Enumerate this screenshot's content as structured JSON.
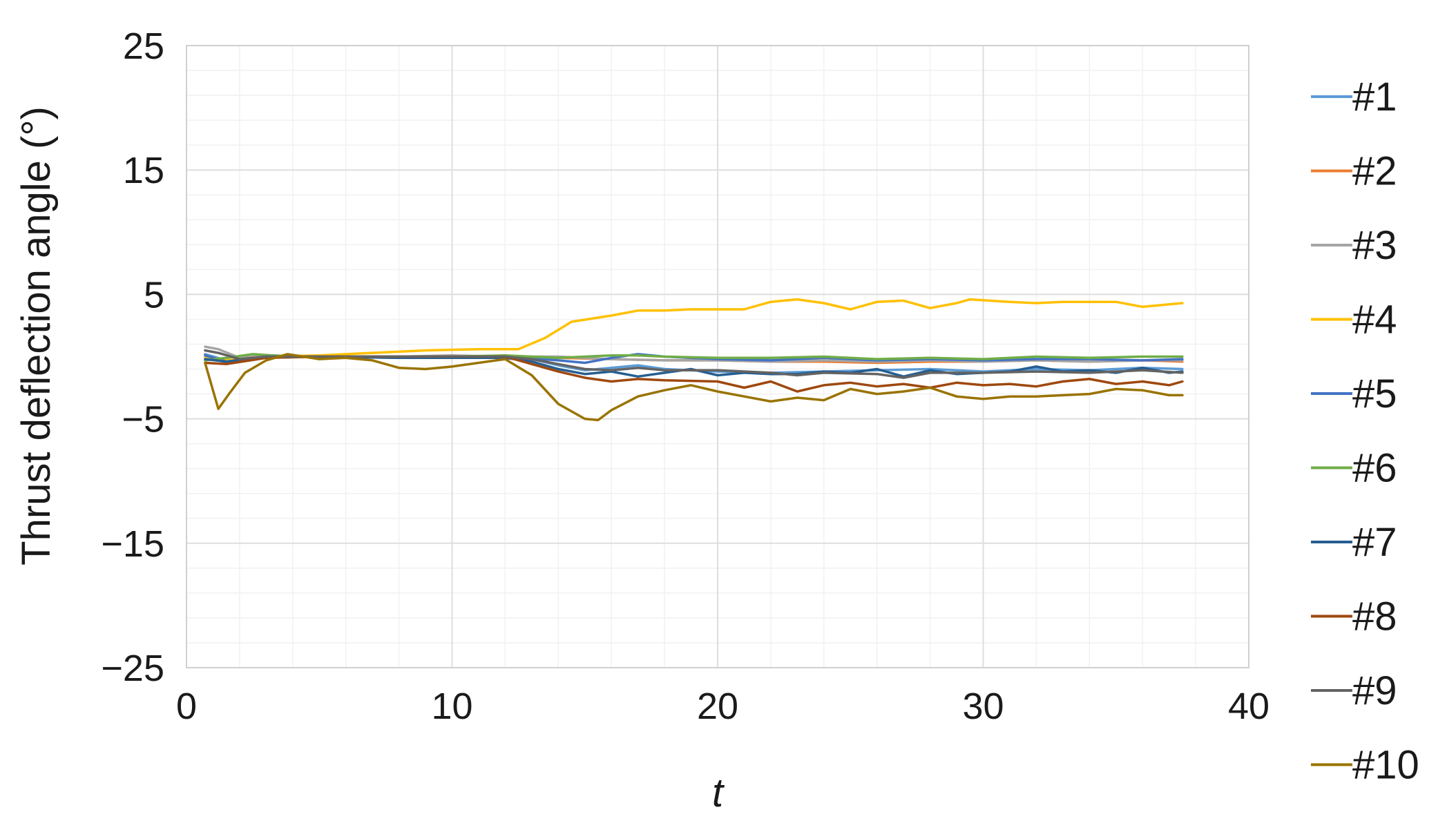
{
  "chart_data": {
    "type": "line",
    "title": "",
    "xlabel": "t",
    "ylabel": "Thrust deflection angle (°)",
    "xlim": [
      0,
      40
    ],
    "ylim": [
      -25,
      25
    ],
    "x_ticks": [
      0,
      10,
      20,
      30,
      40
    ],
    "x_tick_labels": [
      "0",
      "10",
      "20",
      "30",
      "40"
    ],
    "y_ticks": [
      -25,
      -15,
      -5,
      5,
      15,
      25
    ],
    "y_tick_labels": [
      "−25",
      "−15",
      "−5",
      "5",
      "15",
      "25"
    ],
    "grid": true,
    "legend_position": "right",
    "series": [
      {
        "name": "#1",
        "color": "#5b9bd5",
        "points": [
          [
            0.7,
            0.2
          ],
          [
            1.5,
            -0.3
          ],
          [
            3,
            0
          ],
          [
            5,
            0
          ],
          [
            8,
            -0.1
          ],
          [
            10,
            -0.1
          ],
          [
            12,
            0
          ],
          [
            13,
            -0.2
          ],
          [
            14,
            -0.7
          ],
          [
            15,
            -1.1
          ],
          [
            16,
            -0.9
          ],
          [
            17,
            -0.7
          ],
          [
            18,
            -1.0
          ],
          [
            20,
            -1.2
          ],
          [
            22,
            -1.3
          ],
          [
            24,
            -1.2
          ],
          [
            26,
            -1.1
          ],
          [
            28,
            -1.0
          ],
          [
            30,
            -1.2
          ],
          [
            32,
            -1.0
          ],
          [
            34,
            -1.1
          ],
          [
            36,
            -0.9
          ],
          [
            37.5,
            -1.0
          ]
        ]
      },
      {
        "name": "#2",
        "color": "#ed7d31",
        "points": [
          [
            0.7,
            0.1
          ],
          [
            1.5,
            -0.5
          ],
          [
            3,
            -0.1
          ],
          [
            5,
            0
          ],
          [
            8,
            0
          ],
          [
            10,
            0
          ],
          [
            12,
            0
          ],
          [
            14,
            -0.1
          ],
          [
            16,
            -0.2
          ],
          [
            18,
            -0.3
          ],
          [
            20,
            -0.3
          ],
          [
            22,
            -0.4
          ],
          [
            24,
            -0.4
          ],
          [
            26,
            -0.5
          ],
          [
            28,
            -0.4
          ],
          [
            30,
            -0.4
          ],
          [
            32,
            -0.3
          ],
          [
            34,
            -0.4
          ],
          [
            36,
            -0.3
          ],
          [
            37.5,
            -0.4
          ]
        ]
      },
      {
        "name": "#3",
        "color": "#a5a5a5",
        "points": [
          [
            0.7,
            0.8
          ],
          [
            1.2,
            0.6
          ],
          [
            2,
            -0.1
          ],
          [
            3,
            0.1
          ],
          [
            5,
            0
          ],
          [
            8,
            0
          ],
          [
            10,
            0.1
          ],
          [
            12,
            0
          ],
          [
            14,
            0
          ],
          [
            16,
            -0.2
          ],
          [
            18,
            -0.3
          ],
          [
            20,
            -0.3
          ],
          [
            22,
            -0.4
          ],
          [
            24,
            -0.3
          ],
          [
            26,
            -0.4
          ],
          [
            28,
            -0.3
          ],
          [
            30,
            -0.4
          ],
          [
            32,
            -0.3
          ],
          [
            34,
            -0.4
          ],
          [
            36,
            -0.3
          ],
          [
            37.5,
            -0.3
          ]
        ]
      },
      {
        "name": "#4",
        "color": "#ffc000",
        "points": [
          [
            0.7,
            0.0
          ],
          [
            1.5,
            -0.3
          ],
          [
            3,
            0
          ],
          [
            5,
            0.1
          ],
          [
            7,
            0.3
          ],
          [
            9,
            0.5
          ],
          [
            11,
            0.6
          ],
          [
            12.5,
            0.6
          ],
          [
            13.5,
            1.5
          ],
          [
            14.5,
            2.8
          ],
          [
            16,
            3.3
          ],
          [
            17,
            3.7
          ],
          [
            18,
            3.7
          ],
          [
            19,
            3.8
          ],
          [
            20,
            3.8
          ],
          [
            21,
            3.8
          ],
          [
            22,
            4.4
          ],
          [
            23,
            4.6
          ],
          [
            24,
            4.3
          ],
          [
            25,
            3.8
          ],
          [
            26,
            4.4
          ],
          [
            27,
            4.5
          ],
          [
            28,
            3.9
          ],
          [
            29,
            4.3
          ],
          [
            29.5,
            4.6
          ],
          [
            31,
            4.4
          ],
          [
            32,
            4.3
          ],
          [
            33,
            4.4
          ],
          [
            35,
            4.4
          ],
          [
            36,
            4.0
          ],
          [
            37.5,
            4.3
          ]
        ]
      },
      {
        "name": "#5",
        "color": "#4472c4",
        "points": [
          [
            0.7,
            0.1
          ],
          [
            1.5,
            -0.4
          ],
          [
            3,
            0
          ],
          [
            5,
            0
          ],
          [
            8,
            0
          ],
          [
            10,
            0
          ],
          [
            12,
            0
          ],
          [
            14,
            -0.3
          ],
          [
            15,
            -0.5
          ],
          [
            16,
            -0.1
          ],
          [
            17,
            0.2
          ],
          [
            18,
            0
          ],
          [
            20,
            -0.2
          ],
          [
            22,
            -0.3
          ],
          [
            24,
            -0.1
          ],
          [
            26,
            -0.3
          ],
          [
            28,
            -0.2
          ],
          [
            30,
            -0.3
          ],
          [
            32,
            -0.2
          ],
          [
            34,
            -0.2
          ],
          [
            36,
            -0.3
          ],
          [
            37.5,
            -0.2
          ]
        ]
      },
      {
        "name": "#6",
        "color": "#70ad47",
        "points": [
          [
            0.7,
            -0.3
          ],
          [
            1.5,
            -0.1
          ],
          [
            2.5,
            0.2
          ],
          [
            4,
            0
          ],
          [
            6,
            0
          ],
          [
            8,
            0
          ],
          [
            10,
            0
          ],
          [
            12,
            0.1
          ],
          [
            14,
            -0.1
          ],
          [
            16,
            0.1
          ],
          [
            17,
            0.1
          ],
          [
            18,
            0
          ],
          [
            20,
            -0.1
          ],
          [
            22,
            -0.1
          ],
          [
            24,
            0
          ],
          [
            26,
            -0.2
          ],
          [
            28,
            -0.1
          ],
          [
            30,
            -0.2
          ],
          [
            32,
            0
          ],
          [
            34,
            -0.1
          ],
          [
            36,
            0
          ],
          [
            37.5,
            0
          ]
        ]
      },
      {
        "name": "#7",
        "color": "#255e91",
        "points": [
          [
            0.7,
            -0.2
          ],
          [
            1.5,
            -0.4
          ],
          [
            3,
            0
          ],
          [
            5,
            0
          ],
          [
            8,
            -0.1
          ],
          [
            10,
            -0.1
          ],
          [
            12,
            -0.1
          ],
          [
            13,
            -0.4
          ],
          [
            14,
            -1.0
          ],
          [
            15,
            -1.4
          ],
          [
            16,
            -1.2
          ],
          [
            17,
            -1.6
          ],
          [
            18,
            -1.3
          ],
          [
            19,
            -1.0
          ],
          [
            20,
            -1.5
          ],
          [
            21,
            -1.3
          ],
          [
            22,
            -1.4
          ],
          [
            23,
            -1.4
          ],
          [
            24,
            -1.2
          ],
          [
            25,
            -1.3
          ],
          [
            26,
            -1.0
          ],
          [
            27,
            -1.6
          ],
          [
            28,
            -1.1
          ],
          [
            29,
            -1.4
          ],
          [
            30,
            -1.3
          ],
          [
            31,
            -1.2
          ],
          [
            32,
            -0.8
          ],
          [
            33,
            -1.2
          ],
          [
            34,
            -1.1
          ],
          [
            35,
            -1.3
          ],
          [
            36,
            -0.9
          ],
          [
            37,
            -1.3
          ],
          [
            37.5,
            -1.2
          ]
        ]
      },
      {
        "name": "#8",
        "color": "#9e480e",
        "points": [
          [
            0.7,
            -0.5
          ],
          [
            1.5,
            -0.6
          ],
          [
            3,
            -0.1
          ],
          [
            5,
            0
          ],
          [
            8,
            0
          ],
          [
            10,
            0
          ],
          [
            12,
            0
          ],
          [
            13,
            -0.6
          ],
          [
            14,
            -1.2
          ],
          [
            15,
            -1.7
          ],
          [
            16,
            -2.0
          ],
          [
            17,
            -1.8
          ],
          [
            18,
            -1.9
          ],
          [
            20,
            -2.0
          ],
          [
            21,
            -2.5
          ],
          [
            22,
            -2.0
          ],
          [
            23,
            -2.8
          ],
          [
            24,
            -2.3
          ],
          [
            25,
            -2.1
          ],
          [
            26,
            -2.4
          ],
          [
            27,
            -2.2
          ],
          [
            28,
            -2.5
          ],
          [
            29,
            -2.1
          ],
          [
            30,
            -2.3
          ],
          [
            31,
            -2.2
          ],
          [
            32,
            -2.4
          ],
          [
            33,
            -2.0
          ],
          [
            34,
            -1.8
          ],
          [
            35,
            -2.2
          ],
          [
            36,
            -2.0
          ],
          [
            37,
            -2.3
          ],
          [
            37.5,
            -2.0
          ]
        ]
      },
      {
        "name": "#9",
        "color": "#636363",
        "points": [
          [
            0.7,
            0.5
          ],
          [
            1.2,
            0.3
          ],
          [
            2,
            -0.2
          ],
          [
            3,
            0
          ],
          [
            5,
            0
          ],
          [
            8,
            0
          ],
          [
            10,
            0
          ],
          [
            12,
            0
          ],
          [
            13,
            -0.2
          ],
          [
            14,
            -0.6
          ],
          [
            15,
            -1.0
          ],
          [
            16,
            -1.1
          ],
          [
            17,
            -0.9
          ],
          [
            18,
            -1.1
          ],
          [
            20,
            -1.1
          ],
          [
            22,
            -1.3
          ],
          [
            23,
            -1.5
          ],
          [
            24,
            -1.3
          ],
          [
            26,
            -1.4
          ],
          [
            27,
            -1.7
          ],
          [
            28,
            -1.3
          ],
          [
            30,
            -1.3
          ],
          [
            32,
            -1.2
          ],
          [
            34,
            -1.3
          ],
          [
            36,
            -1.1
          ],
          [
            37.5,
            -1.3
          ]
        ]
      },
      {
        "name": "#10",
        "color": "#997300",
        "points": [
          [
            0.7,
            -0.5
          ],
          [
            1.2,
            -4.2
          ],
          [
            1.6,
            -3.0
          ],
          [
            2.2,
            -1.3
          ],
          [
            3,
            -0.3
          ],
          [
            3.8,
            0.2
          ],
          [
            5,
            -0.2
          ],
          [
            6,
            -0.1
          ],
          [
            7,
            -0.3
          ],
          [
            8,
            -0.9
          ],
          [
            9,
            -1.0
          ],
          [
            10,
            -0.8
          ],
          [
            11,
            -0.5
          ],
          [
            12,
            -0.2
          ],
          [
            13,
            -1.5
          ],
          [
            14,
            -3.8
          ],
          [
            15,
            -5.0
          ],
          [
            15.5,
            -5.1
          ],
          [
            16,
            -4.3
          ],
          [
            17,
            -3.2
          ],
          [
            18,
            -2.7
          ],
          [
            19,
            -2.3
          ],
          [
            20,
            -2.8
          ],
          [
            21,
            -3.2
          ],
          [
            22,
            -3.6
          ],
          [
            23,
            -3.3
          ],
          [
            24,
            -3.5
          ],
          [
            25,
            -2.6
          ],
          [
            26,
            -3.0
          ],
          [
            27,
            -2.8
          ],
          [
            28,
            -2.5
          ],
          [
            29,
            -3.2
          ],
          [
            30,
            -3.4
          ],
          [
            31,
            -3.2
          ],
          [
            32,
            -3.2
          ],
          [
            33,
            -3.1
          ],
          [
            34,
            -3.0
          ],
          [
            35,
            -2.6
          ],
          [
            36,
            -2.7
          ],
          [
            37,
            -3.1
          ],
          [
            37.5,
            -3.1
          ]
        ]
      }
    ]
  }
}
